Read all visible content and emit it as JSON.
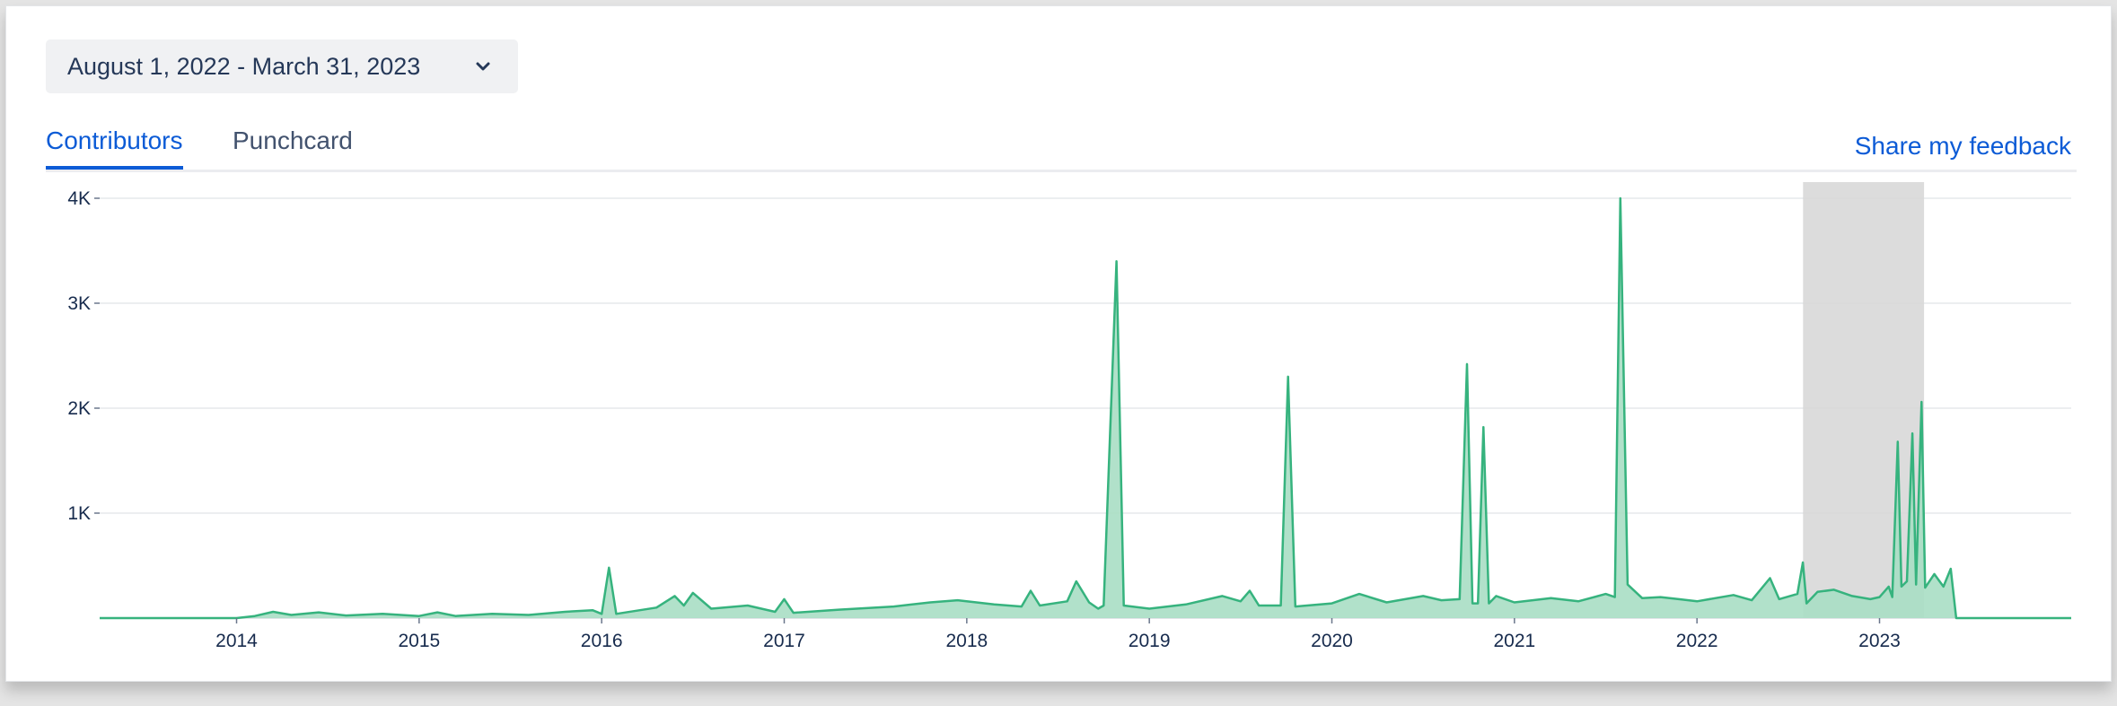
{
  "date_range": {
    "label": "August 1, 2022 - March 31, 2023"
  },
  "tabs": [
    {
      "label": "Contributors",
      "active": true
    },
    {
      "label": "Punchcard",
      "active": false
    }
  ],
  "feedback_link": "Share my feedback",
  "colors": {
    "accent": "#0c5bd6",
    "series": "#36b37e",
    "fill": "#a9dec4",
    "selection": "#d6d6d6"
  },
  "icons": {
    "dropdown": "chevron-down-icon"
  },
  "chart_data": {
    "type": "area",
    "title": "",
    "xlabel": "",
    "ylabel": "",
    "x_ticks": [
      "2014",
      "2015",
      "2016",
      "2017",
      "2018",
      "2019",
      "2020",
      "2021",
      "2022",
      "2023"
    ],
    "y_ticks": [
      "1K",
      "2K",
      "3K",
      "4K"
    ],
    "ylim": [
      0,
      4000
    ],
    "xlim": [
      2013.25,
      2024.05
    ],
    "grid": true,
    "selection": {
      "start": "2022-08-01",
      "end": "2023-03-31"
    },
    "series": [
      {
        "values": [
          [
            2013.25,
            0
          ],
          [
            2014.0,
            0
          ],
          [
            2014.1,
            20
          ],
          [
            2014.2,
            60
          ],
          [
            2014.3,
            30
          ],
          [
            2014.45,
            55
          ],
          [
            2014.6,
            25
          ],
          [
            2014.8,
            40
          ],
          [
            2015.0,
            20
          ],
          [
            2015.1,
            55
          ],
          [
            2015.2,
            20
          ],
          [
            2015.4,
            40
          ],
          [
            2015.6,
            30
          ],
          [
            2015.8,
            60
          ],
          [
            2015.95,
            75
          ],
          [
            2016.0,
            40
          ],
          [
            2016.04,
            480
          ],
          [
            2016.08,
            40
          ],
          [
            2016.3,
            100
          ],
          [
            2016.4,
            210
          ],
          [
            2016.45,
            120
          ],
          [
            2016.5,
            240
          ],
          [
            2016.6,
            90
          ],
          [
            2016.8,
            120
          ],
          [
            2016.95,
            60
          ],
          [
            2017.0,
            180
          ],
          [
            2017.05,
            50
          ],
          [
            2017.3,
            80
          ],
          [
            2017.6,
            110
          ],
          [
            2017.8,
            150
          ],
          [
            2017.95,
            170
          ],
          [
            2018.15,
            130
          ],
          [
            2018.3,
            110
          ],
          [
            2018.35,
            260
          ],
          [
            2018.4,
            120
          ],
          [
            2018.55,
            160
          ],
          [
            2018.6,
            350
          ],
          [
            2018.67,
            150
          ],
          [
            2018.72,
            90
          ],
          [
            2018.75,
            120
          ],
          [
            2018.82,
            3400
          ],
          [
            2018.86,
            120
          ],
          [
            2019.0,
            90
          ],
          [
            2019.2,
            130
          ],
          [
            2019.4,
            210
          ],
          [
            2019.5,
            160
          ],
          [
            2019.55,
            260
          ],
          [
            2019.6,
            120
          ],
          [
            2019.72,
            120
          ],
          [
            2019.76,
            2300
          ],
          [
            2019.8,
            110
          ],
          [
            2020.0,
            140
          ],
          [
            2020.15,
            230
          ],
          [
            2020.3,
            150
          ],
          [
            2020.5,
            210
          ],
          [
            2020.6,
            170
          ],
          [
            2020.7,
            180
          ],
          [
            2020.74,
            2420
          ],
          [
            2020.77,
            140
          ],
          [
            2020.8,
            140
          ],
          [
            2020.83,
            1820
          ],
          [
            2020.86,
            140
          ],
          [
            2020.9,
            210
          ],
          [
            2021.0,
            150
          ],
          [
            2021.2,
            190
          ],
          [
            2021.35,
            160
          ],
          [
            2021.5,
            230
          ],
          [
            2021.55,
            200
          ],
          [
            2021.58,
            4000
          ],
          [
            2021.62,
            320
          ],
          [
            2021.7,
            190
          ],
          [
            2021.8,
            200
          ],
          [
            2021.9,
            180
          ],
          [
            2022.0,
            160
          ],
          [
            2022.2,
            220
          ],
          [
            2022.3,
            170
          ],
          [
            2022.4,
            380
          ],
          [
            2022.45,
            180
          ],
          [
            2022.55,
            230
          ],
          [
            2022.58,
            530
          ],
          [
            2022.6,
            140
          ],
          [
            2022.66,
            250
          ],
          [
            2022.75,
            270
          ],
          [
            2022.85,
            210
          ],
          [
            2022.95,
            180
          ],
          [
            2023.0,
            200
          ],
          [
            2023.05,
            300
          ],
          [
            2023.07,
            200
          ],
          [
            2023.1,
            1680
          ],
          [
            2023.12,
            300
          ],
          [
            2023.15,
            350
          ],
          [
            2023.18,
            1760
          ],
          [
            2023.2,
            320
          ],
          [
            2023.23,
            2060
          ],
          [
            2023.25,
            290
          ],
          [
            2023.3,
            420
          ],
          [
            2023.35,
            300
          ],
          [
            2023.39,
            470
          ],
          [
            2023.42,
            0
          ],
          [
            2024.05,
            0
          ]
        ]
      }
    ]
  }
}
